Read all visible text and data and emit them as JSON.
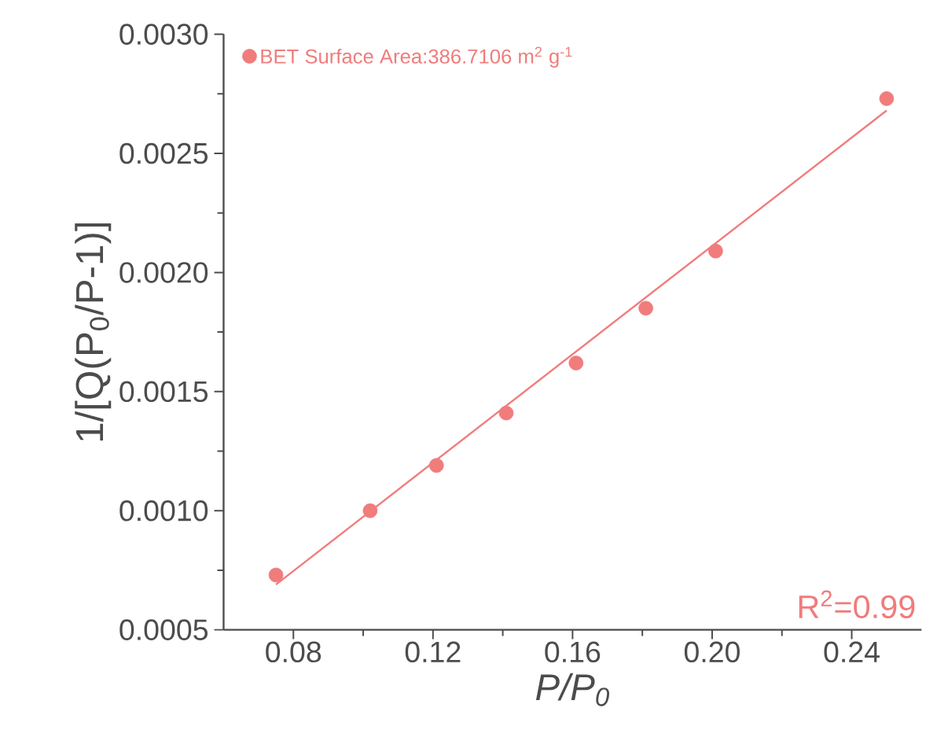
{
  "chart_data": {
    "type": "scatter",
    "xlabel": "P/P$_{0}$",
    "ylabel": "1/[Q(P$_{0}$/P-1)]",
    "xlim": [
      0.06,
      0.26
    ],
    "ylim": [
      0.0005,
      0.003
    ],
    "xticks": [
      {
        "value": 0.08,
        "label": "0.08"
      },
      {
        "value": 0.12,
        "label": "0.12"
      },
      {
        "value": 0.16,
        "label": "0.16"
      },
      {
        "value": 0.2,
        "label": "0.20"
      },
      {
        "value": 0.24,
        "label": "0.24"
      }
    ],
    "yticks": [
      {
        "value": 0.0005,
        "label": "0.0005"
      },
      {
        "value": 0.001,
        "label": "0.0010"
      },
      {
        "value": 0.0015,
        "label": "0.0015"
      },
      {
        "value": 0.002,
        "label": "0.0020"
      },
      {
        "value": 0.0025,
        "label": "0.0025"
      },
      {
        "value": 0.003,
        "label": "0.0030"
      }
    ],
    "series": [
      {
        "name": "BET Surface Area:386.7106 m$^{2}$ g$^{-1}$",
        "color": "#f07c7c",
        "marker": "circle",
        "x": [
          0.075,
          0.102,
          0.121,
          0.141,
          0.161,
          0.181,
          0.201,
          0.25
        ],
        "values": [
          0.00073,
          0.001,
          0.00119,
          0.00141,
          0.00162,
          0.00185,
          0.00209,
          0.00273
        ]
      },
      {
        "type": "line",
        "color": "#f07c7c",
        "marker": "none",
        "x": [
          0.075,
          0.25
        ],
        "values": [
          0.00069,
          0.00268
        ]
      }
    ],
    "legend": "top left",
    "grid": false,
    "annotations": [
      "R$^{2}$=0.99"
    ]
  }
}
